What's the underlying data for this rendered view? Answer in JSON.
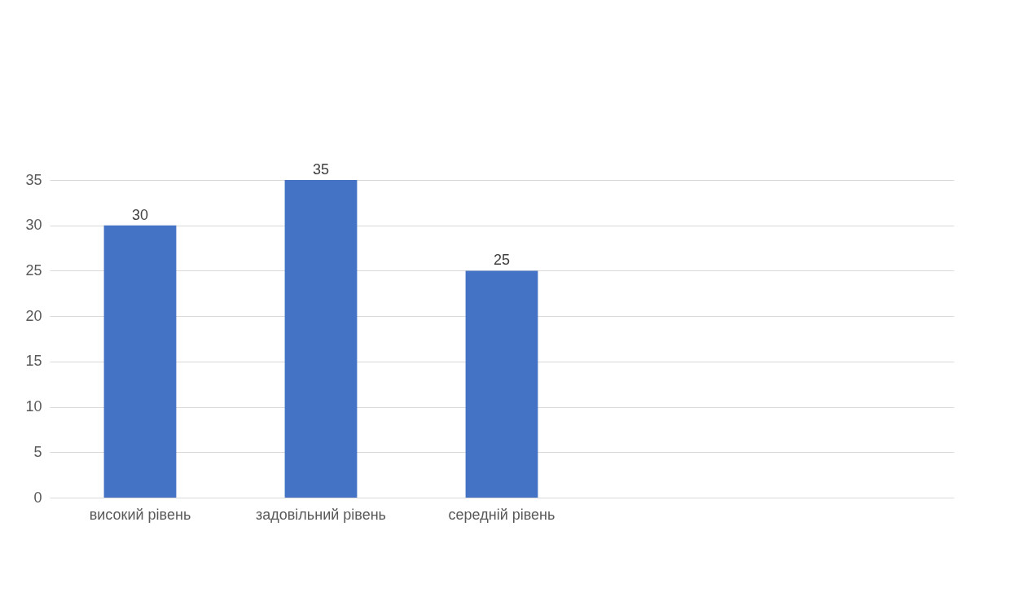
{
  "chart_data": {
    "type": "bar",
    "categories": [
      "високий рівень",
      "задовільний рівень",
      "середній рівень",
      null,
      null
    ],
    "values": [
      30,
      35,
      25,
      null,
      null
    ],
    "color": "#4472c4",
    "ylim": [
      0,
      35
    ],
    "yticks": [
      0,
      5,
      10,
      15,
      20,
      25,
      30,
      35
    ],
    "grid": "y",
    "data_labels": true
  }
}
